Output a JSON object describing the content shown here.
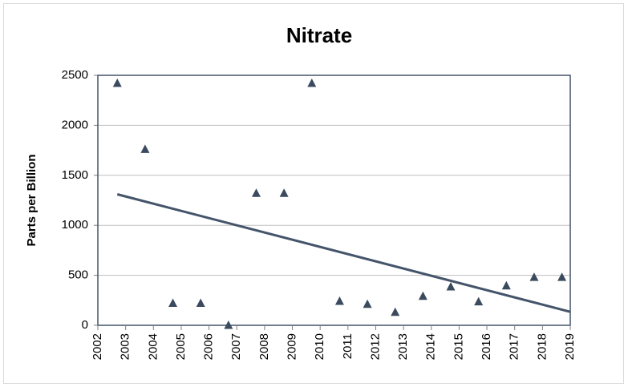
{
  "chart_data": {
    "type": "scatter",
    "title": "Nitrate",
    "y_label": "Parts per Billion",
    "series": [
      {
        "color": "#3b4a5e",
        "x": [
          2002.7,
          2003.7,
          2004.7,
          2005.7,
          2006.7,
          2007.7,
          2008.7,
          2009.7,
          2010.7,
          2011.7,
          2012.7,
          2013.7,
          2014.7,
          2015.7,
          2016.7,
          2017.7,
          2018.7
        ],
        "values": [
          2420,
          1760,
          220,
          220,
          0,
          1320,
          1320,
          2420,
          240,
          210,
          130,
          290,
          385,
          235,
          395,
          480,
          480
        ]
      }
    ],
    "trendline": {
      "color": "#44546a",
      "x": [
        2002.7,
        2019
      ],
      "values": [
        1310,
        135
      ]
    },
    "xlim": [
      2002,
      2019
    ],
    "xticks": [
      2002,
      2003,
      2004,
      2005,
      2006,
      2007,
      2008,
      2009,
      2010,
      2011,
      2012,
      2013,
      2014,
      2015,
      2016,
      2017,
      2018,
      2019
    ],
    "ylim": [
      0,
      2500
    ],
    "yticks": [
      0,
      500,
      1000,
      1500,
      2000,
      2500
    ],
    "grid": true
  }
}
